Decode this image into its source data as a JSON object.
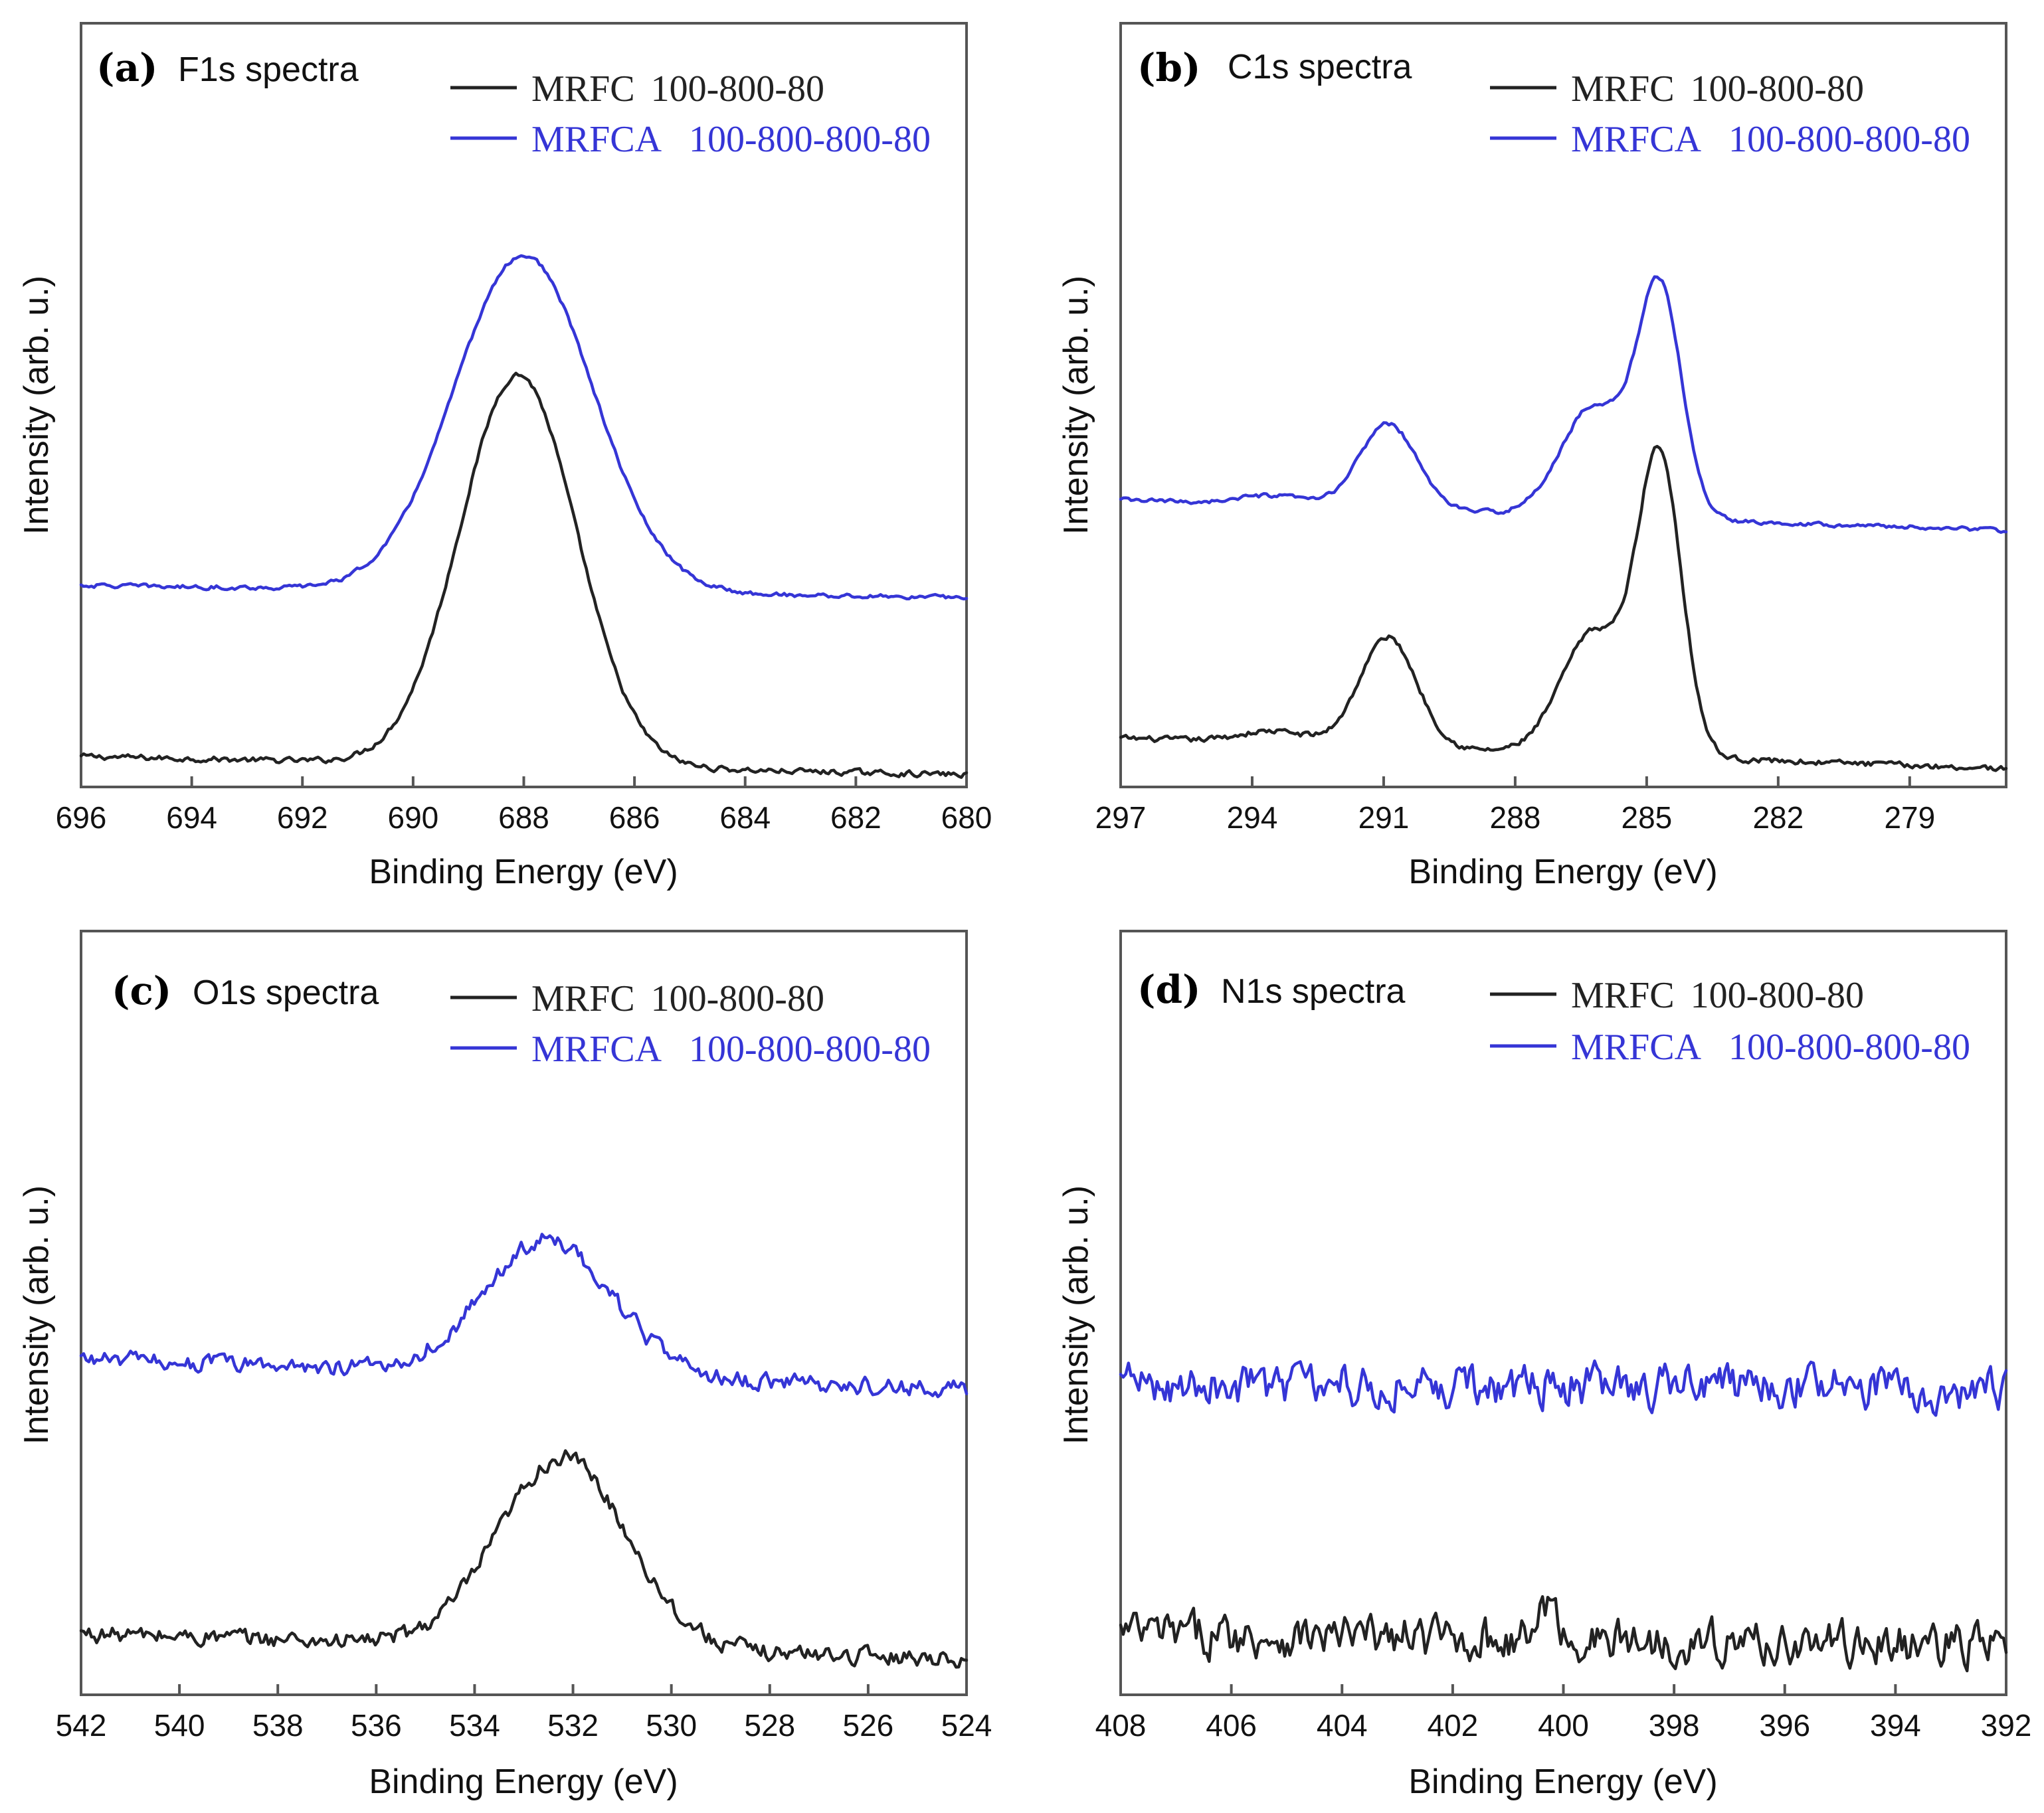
{
  "colors": {
    "mrfc": "#222222",
    "mrfca": "#3535d6",
    "axis": "#555555"
  },
  "chart_data": [
    {
      "type": "line",
      "panel_label": "(a)",
      "title": "F1s spectra",
      "xlabel": "Binding Energy (eV)",
      "ylabel": "Intensity (arb. u.)",
      "xlim": [
        696,
        680
      ],
      "ylim": [
        0,
        1.25
      ],
      "xticks": [
        "696",
        "694",
        "692",
        "690",
        "688",
        "686",
        "684",
        "682",
        "680"
      ],
      "legend": [
        {
          "name": "MRFC",
          "suffix": "100-800-80",
          "color": "#222222"
        },
        {
          "name": "MRFCA",
          "suffix": "100-800-800-80",
          "color": "#3535d6"
        }
      ],
      "series": [
        {
          "name": "MRFC 100-800-80",
          "color": "#222222",
          "noise": 0.004,
          "baseline": [
            0.05,
            0.02
          ],
          "peaks": [
            {
              "center": 688.1,
              "height": 0.64,
              "width": 1.05
            }
          ]
        },
        {
          "name": "MRFCA 100-800-800-80",
          "color": "#3535d6",
          "noise": 0.003,
          "baseline": [
            0.33,
            0.31
          ],
          "peaks": [
            {
              "center": 688.0,
              "height": 0.55,
              "width": 1.25
            }
          ]
        }
      ]
    },
    {
      "type": "line",
      "panel_label": "(b)",
      "title": "C1s spectra",
      "xlabel": "Binding Energy (eV)",
      "ylabel": "Intensity (arb. u.)",
      "xlim": [
        297,
        276.8
      ],
      "ylim": [
        0,
        1.25
      ],
      "xticks": [
        "297",
        "294",
        "291",
        "288",
        "285",
        "282",
        "279"
      ],
      "legend": [
        {
          "name": "MRFC",
          "suffix": "100-800-80",
          "color": "#222222"
        },
        {
          "name": "MRFCA",
          "suffix": "100-800-800-80",
          "color": "#3535d6"
        }
      ],
      "series": [
        {
          "name": "MRFC 100-800-80",
          "color": "#222222",
          "noise": 0.004,
          "baseline": [
            0.08,
            0.03
          ],
          "peaks": [
            {
              "center": 293.5,
              "height": 0.02,
              "width": 0.8
            },
            {
              "center": 290.9,
              "height": 0.18,
              "width": 0.65
            },
            {
              "center": 286.2,
              "height": 0.2,
              "width": 0.75
            },
            {
              "center": 284.7,
              "height": 0.48,
              "width": 0.5
            }
          ]
        },
        {
          "name": "MRFCA 100-800-800-80",
          "color": "#3535d6",
          "noise": 0.003,
          "baseline": [
            0.47,
            0.42
          ],
          "peaks": [
            {
              "center": 293.5,
              "height": 0.015,
              "width": 0.8
            },
            {
              "center": 290.9,
              "height": 0.14,
              "width": 0.65
            },
            {
              "center": 286.2,
              "height": 0.18,
              "width": 0.75
            },
            {
              "center": 284.7,
              "height": 0.37,
              "width": 0.5
            }
          ]
        }
      ]
    },
    {
      "type": "line",
      "panel_label": "(c)",
      "title": "O1s spectra",
      "xlabel": "Binding Energy (eV)",
      "ylabel": "Intensity (arb. u.)",
      "xlim": [
        542,
        524
      ],
      "ylim": [
        0,
        1.25
      ],
      "xticks": [
        "542",
        "540",
        "538",
        "536",
        "534",
        "532",
        "530",
        "528",
        "526",
        "524"
      ],
      "legend": [
        {
          "name": "MRFC",
          "suffix": "100-800-80",
          "color": "#222222"
        },
        {
          "name": "MRFCA",
          "suffix": "100-800-800-80",
          "color": "#3535d6"
        }
      ],
      "series": [
        {
          "name": "MRFC 100-800-80",
          "color": "#222222",
          "noise": 0.012,
          "baseline": [
            0.1,
            0.06
          ],
          "peaks": [
            {
              "center": 532.2,
              "height": 0.31,
              "width": 1.3
            }
          ]
        },
        {
          "name": "MRFCA 100-800-800-80",
          "color": "#3535d6",
          "noise": 0.012,
          "baseline": [
            0.55,
            0.5
          ],
          "peaks": [
            {
              "center": 532.5,
              "height": 0.22,
              "width": 1.3
            }
          ]
        }
      ]
    },
    {
      "type": "line",
      "panel_label": "(d)",
      "title": "N1s spectra",
      "xlabel": "Binding Energy (eV)",
      "ylabel": "Intensity (arb. u.)",
      "xlim": [
        408,
        392
      ],
      "ylim": [
        0,
        1.25
      ],
      "xticks": [
        "408",
        "406",
        "404",
        "402",
        "400",
        "398",
        "396",
        "394",
        "392"
      ],
      "legend": [
        {
          "name": "MRFC",
          "suffix": "100-800-80",
          "color": "#222222"
        },
        {
          "name": "MRFCA",
          "suffix": "100-800-800-80",
          "color": "#3535d6"
        }
      ],
      "series": [
        {
          "name": "MRFC 100-800-80",
          "color": "#222222",
          "noise": 0.03,
          "baseline": [
            0.1,
            0.08
          ],
          "peaks": [
            {
              "center": 400.3,
              "height": 0.06,
              "width": 0.15
            }
          ]
        },
        {
          "name": "MRFCA 100-800-800-80",
          "color": "#3535d6",
          "noise": 0.03,
          "baseline": [
            0.51,
            0.5
          ],
          "peaks": []
        }
      ]
    }
  ]
}
